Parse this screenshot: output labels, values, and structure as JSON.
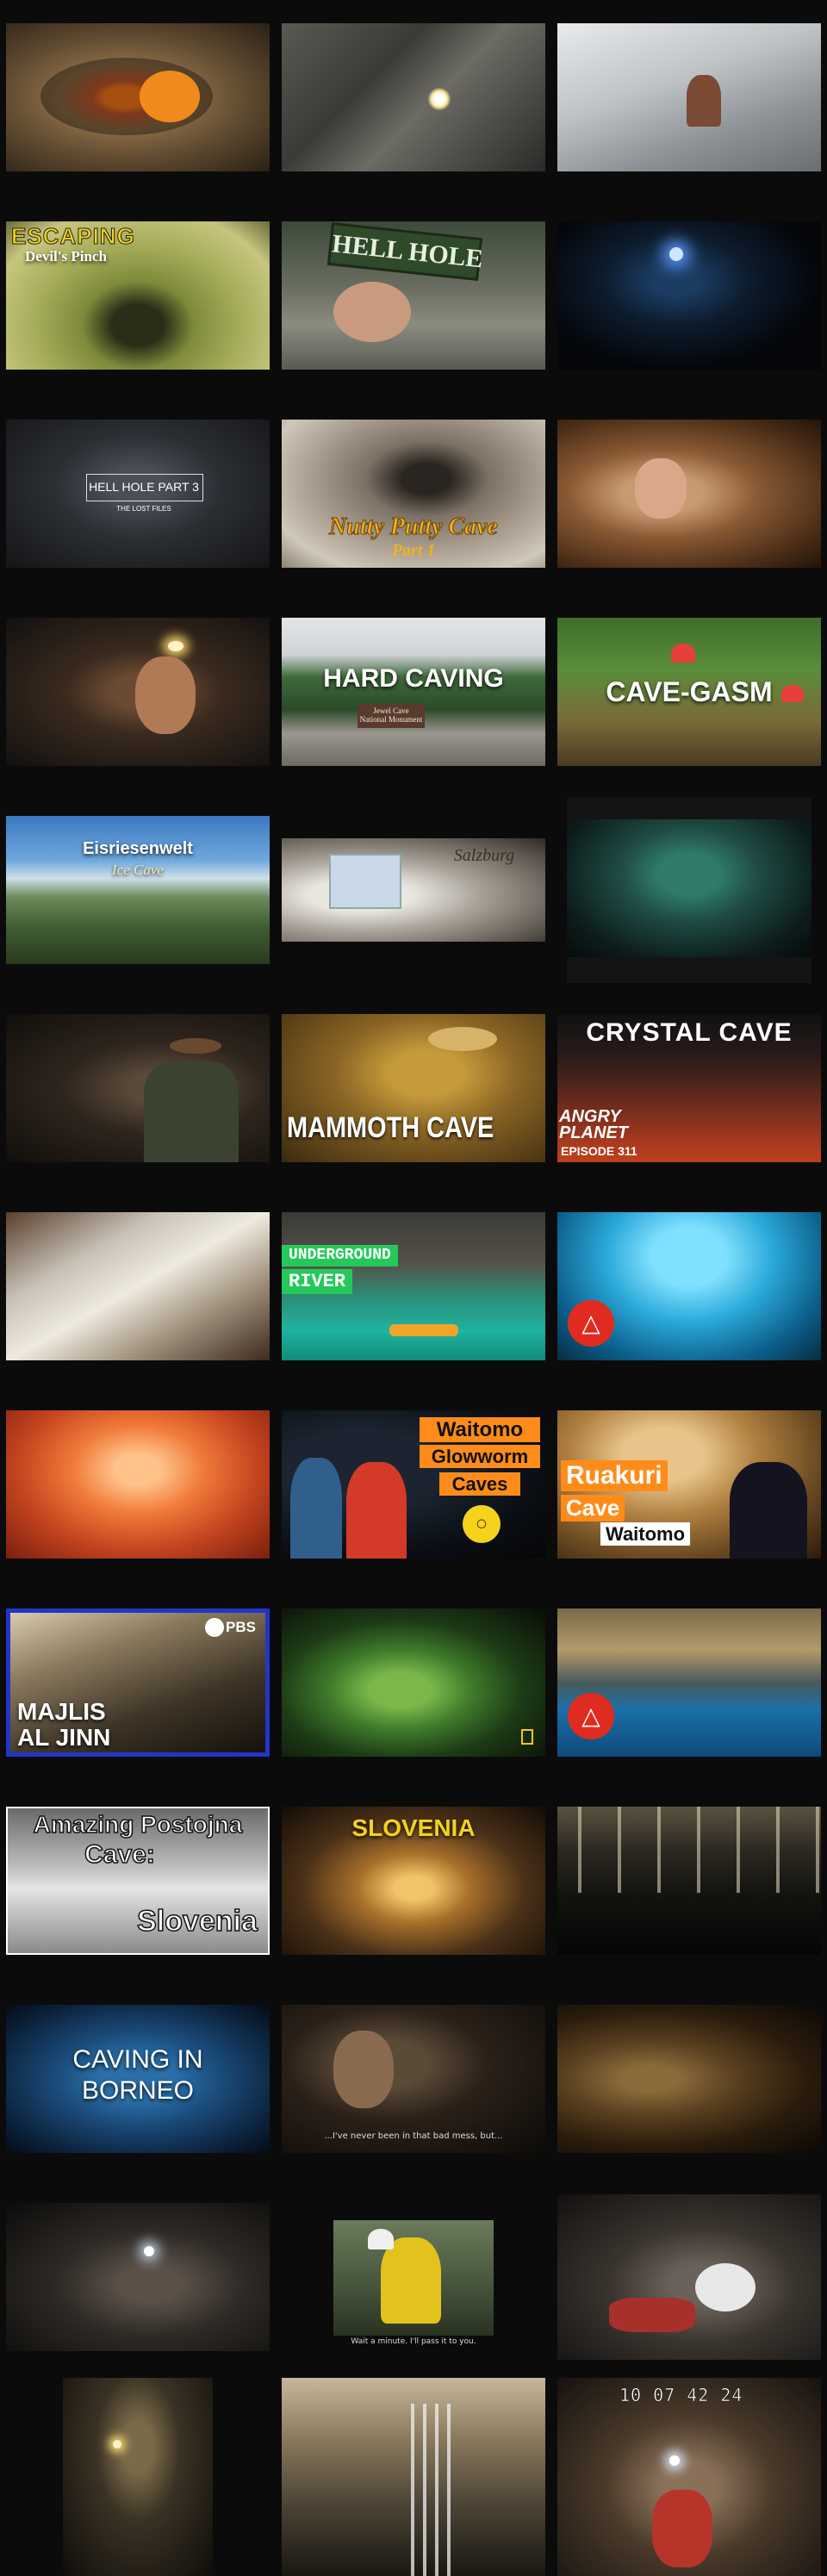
{
  "captions": {
    "escaping": "ESCAPING",
    "devils_pinch": "Devil's Pinch",
    "hell_hole_sign": "HELL HOLE",
    "hell_hole_part3": "HELL HOLE PART 3",
    "the_lost_files": "THE LOST FILES",
    "nutty_putty_cave": "Nutty Putty Cave",
    "part_1": "Part 1",
    "hard_caving": "HARD CAVING",
    "jewel_cave_sign": "Jewel Cave National Monument",
    "cave_gasm": "CAVE-GASM",
    "eisriesenwelt": "Eisriesenwelt",
    "ice_cave": "Ice Cave",
    "salzburg": "Salzburg",
    "mammoth_cave": "MAMMOTH CAVE",
    "crystal_cave": "CRYSTAL CAVE",
    "angry_planet": "ANGRY PLANET",
    "episode": "EPISODE 311",
    "underground": "UNDERGROUND",
    "river": "RIVER",
    "waitomo": "Waitomo",
    "glowworm": "Glowworm",
    "caves": "Caves",
    "ruakuri": "Ruakuri",
    "cave": "Cave",
    "waitomo_small": "Waitomo",
    "pbs": "PBS",
    "majlis": "MAJLIS",
    "al_jinn": "AL JINN",
    "amazing_postojna": "Amazing Postojna",
    "cave_colon": "Cave:",
    "slovenia_white": "Slovenia",
    "slovenia_yellow": "SLOVENIA",
    "caving_in": "CAVING IN",
    "borneo": "BORNEO",
    "subtitle_1": "...I've never been in that bad mess, but...",
    "subtitle_2": "Wait a minute. I'll pass it to you.",
    "timestamp": "10 07 42 24"
  },
  "icons": {
    "red_badge": "rocket-icon",
    "pbs": "pbs-logo-icon"
  },
  "colors": {
    "background": "#000000",
    "column": "#0b0b0b",
    "accent_yellow": "#f2d21b",
    "accent_orange": "#ff8c1a",
    "accent_green": "#25c95a",
    "pbs_blue": "#2235c9",
    "badge_red": "#e02b20"
  }
}
